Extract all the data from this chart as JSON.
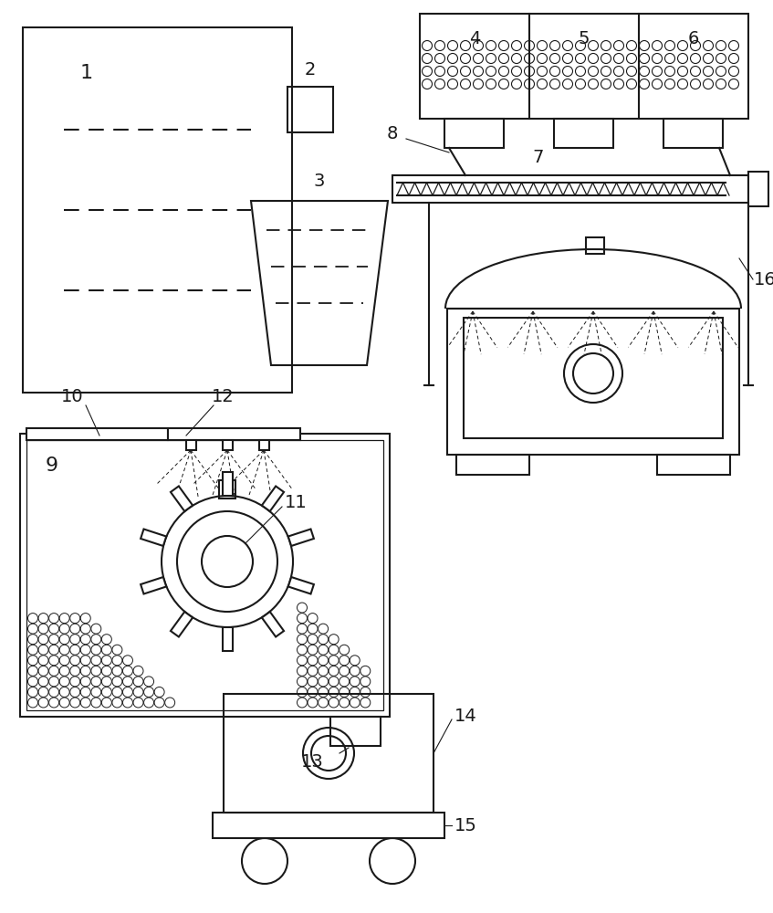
{
  "bg_color": "#ffffff",
  "line_color": "#1a1a1a",
  "lw": 1.5,
  "fig_w": 8.47,
  "fig_h": 10.0
}
